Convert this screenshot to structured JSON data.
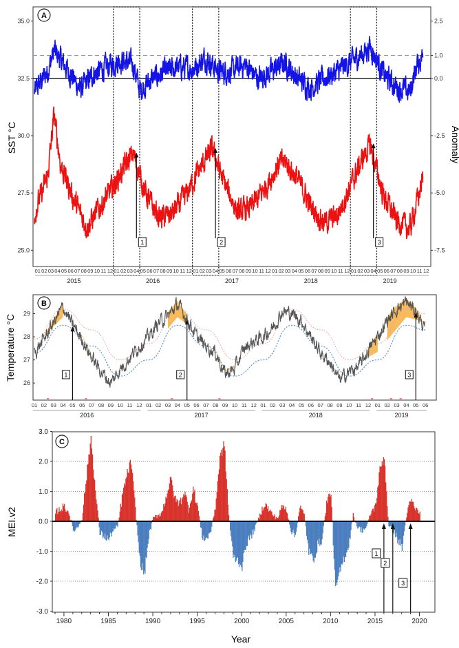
{
  "panels": [
    {
      "id": "A",
      "label": "A",
      "left_axis_label": "SST  °C",
      "right_axis_label": "Anomaly",
      "left_ticks": [
        "35.0",
        "32.5",
        "30.0",
        "27.5",
        "25.0"
      ],
      "right_ticks": [
        "2.5",
        "1.0",
        "0.0",
        "-2.5",
        "-5.0",
        "-7.5"
      ],
      "month_ticks": [
        "01",
        "02",
        "03",
        "04",
        "05",
        "06",
        "07",
        "08",
        "09",
        "10",
        "11",
        "12"
      ],
      "year_labels": [
        "2015",
        "2016",
        "2017",
        "2018",
        "2019"
      ],
      "markers": [
        "1",
        "2",
        "3"
      ]
    },
    {
      "id": "B",
      "label": "B",
      "left_axis_label": "Temperature  °C",
      "left_ticks": [
        "29",
        "28",
        "27",
        "26"
      ],
      "month_ticks": [
        "01",
        "02",
        "03",
        "04",
        "05",
        "06",
        "07",
        "08",
        "09",
        "10",
        "11",
        "12"
      ],
      "year_labels": [
        "2016",
        "2017",
        "2018",
        "2019"
      ],
      "markers": [
        "1",
        "2",
        "3"
      ]
    },
    {
      "id": "C",
      "label": "C",
      "left_axis_label": "MEI.v2",
      "x_axis_label": "Year",
      "left_ticks": [
        "3.0",
        "2.0",
        "1.0",
        "0.0",
        "-1.0",
        "-2.0",
        "-3.0"
      ],
      "x_ticks": [
        "1980",
        "1985",
        "1990",
        "1995",
        "2000",
        "2005",
        "2010",
        "2015",
        "2020"
      ],
      "markers": [
        "1",
        "2",
        "3"
      ]
    }
  ],
  "colors": {
    "sst_anomaly": "#1414e6",
    "sst": "#ee1111",
    "temperature": "#555555",
    "climatology": "#e8a0a0",
    "threshold": "#5b8fc9",
    "heatwave_fill": "#f6b24a",
    "mei_positive": "#d8322a",
    "mei_negative": "#4a7ebf",
    "frame": "#333333"
  },
  "chart_data": [
    {
      "panel": "A",
      "type": "line",
      "xlabel": "",
      "ylabel": "SST  °C",
      "y2label": "Anomaly",
      "ylim": [
        24.5,
        35.5
      ],
      "y2lim": [
        -8.0,
        3.0
      ],
      "x_range": [
        "2015-01",
        "2019-12"
      ],
      "series": [
        {
          "axis": "right",
          "points": [
            [
              "2015-01",
              -0.6
            ],
            [
              "2015-03",
              0.3
            ],
            [
              "2015-04",
              1.2
            ],
            [
              "2015-06",
              0.4
            ],
            [
              "2015-08",
              -0.5
            ],
            [
              "2015-10",
              0.2
            ],
            [
              "2015-12",
              0.5
            ],
            [
              "2016-02",
              0.8
            ],
            [
              "2016-04",
              0.6
            ],
            [
              "2016-05",
              -0.5
            ],
            [
              "2016-07",
              0.0
            ],
            [
              "2016-09",
              0.3
            ],
            [
              "2016-11",
              0.5
            ],
            [
              "2017-01",
              0.4
            ],
            [
              "2017-03",
              0.9
            ],
            [
              "2017-05",
              0.3
            ],
            [
              "2017-07",
              0.3
            ],
            [
              "2017-09",
              0.6
            ],
            [
              "2017-11",
              0.0
            ],
            [
              "2018-01",
              0.3
            ],
            [
              "2018-03",
              0.7
            ],
            [
              "2018-05",
              0.0
            ],
            [
              "2018-07",
              -0.4
            ],
            [
              "2018-09",
              0.0
            ],
            [
              "2018-11",
              0.3
            ],
            [
              "2019-01",
              0.7
            ],
            [
              "2019-03",
              1.1
            ],
            [
              "2019-04",
              1.4
            ],
            [
              "2019-06",
              0.2
            ],
            [
              "2019-08",
              -0.4
            ],
            [
              "2019-10",
              -0.6
            ],
            [
              "2019-11",
              0.5
            ],
            [
              "2019-12",
              1.0
            ]
          ]
        },
        {
          "axis": "left",
          "points": [
            [
              "2015-01",
              26.6
            ],
            [
              "2015-03",
              28.2
            ],
            [
              "2015-04",
              30.9
            ],
            [
              "2015-05",
              28.7
            ],
            [
              "2015-07",
              27.2
            ],
            [
              "2015-09",
              26.0
            ],
            [
              "2015-11",
              26.9
            ],
            [
              "2016-01",
              27.8
            ],
            [
              "2016-03",
              28.8
            ],
            [
              "2016-04",
              29.2
            ],
            [
              "2016-06",
              27.4
            ],
            [
              "2016-08",
              26.4
            ],
            [
              "2016-10",
              26.6
            ],
            [
              "2016-12",
              27.4
            ],
            [
              "2017-02",
              28.5
            ],
            [
              "2017-04",
              29.4
            ],
            [
              "2017-06",
              27.8
            ],
            [
              "2017-08",
              26.6
            ],
            [
              "2017-10",
              26.9
            ],
            [
              "2017-12",
              27.7
            ],
            [
              "2018-02",
              28.7
            ],
            [
              "2018-03",
              28.9
            ],
            [
              "2018-05",
              28.1
            ],
            [
              "2018-07",
              26.9
            ],
            [
              "2018-09",
              26.2
            ],
            [
              "2018-11",
              26.5
            ],
            [
              "2019-01",
              27.8
            ],
            [
              "2019-03",
              29.1
            ],
            [
              "2019-04",
              29.6
            ],
            [
              "2019-06",
              27.4
            ],
            [
              "2019-08",
              26.3
            ],
            [
              "2019-10",
              25.9
            ],
            [
              "2019-12",
              28.1
            ]
          ]
        }
      ],
      "reference_lines": [
        {
          "axis": "right",
          "value": 0.0,
          "style": "solid"
        },
        {
          "axis": "right",
          "value": 1.0,
          "style": "dashed"
        }
      ],
      "highlight_windows": [
        [
          "2016-01",
          "2016-04"
        ],
        [
          "2017-01",
          "2017-04"
        ],
        [
          "2019-01",
          "2019-04"
        ]
      ],
      "event_markers": [
        {
          "label": "1",
          "date": "2016-04"
        },
        {
          "label": "2",
          "date": "2017-04"
        },
        {
          "label": "3",
          "date": "2019-04"
        }
      ]
    },
    {
      "panel": "B",
      "type": "line",
      "xlabel": "",
      "ylabel": "Temperature  °C",
      "ylim": [
        25.5,
        29.7
      ],
      "x_range": [
        "2016-01",
        "2019-06"
      ],
      "series": [
        {
          "points": [
            [
              "2016-01",
              27.3
            ],
            [
              "2016-02",
              27.9
            ],
            [
              "2016-03",
              28.6
            ],
            [
              "2016-04",
              29.3
            ],
            [
              "2016-05",
              28.5
            ],
            [
              "2016-06",
              27.9
            ],
            [
              "2016-07",
              27.1
            ],
            [
              "2016-08",
              26.5
            ],
            [
              "2016-09",
              26.0
            ],
            [
              "2016-10",
              26.6
            ],
            [
              "2016-11",
              27.1
            ],
            [
              "2016-12",
              27.6
            ],
            [
              "2017-01",
              28.0
            ],
            [
              "2017-02",
              28.6
            ],
            [
              "2017-03",
              28.9
            ],
            [
              "2017-04",
              29.4
            ],
            [
              "2017-05",
              28.8
            ],
            [
              "2017-06",
              28.0
            ],
            [
              "2017-07",
              27.6
            ],
            [
              "2017-08",
              27.3
            ],
            [
              "2017-09",
              26.4
            ],
            [
              "2017-10",
              26.6
            ],
            [
              "2017-11",
              27.5
            ],
            [
              "2017-12",
              27.8
            ],
            [
              "2018-01",
              28.0
            ],
            [
              "2018-02",
              28.4
            ],
            [
              "2018-03",
              29.1
            ],
            [
              "2018-04",
              29.0
            ],
            [
              "2018-05",
              28.7
            ],
            [
              "2018-06",
              28.0
            ],
            [
              "2018-07",
              27.3
            ],
            [
              "2018-08",
              26.9
            ],
            [
              "2018-09",
              26.1
            ],
            [
              "2018-10",
              26.5
            ],
            [
              "2018-11",
              26.7
            ],
            [
              "2018-12",
              27.4
            ],
            [
              "2019-01",
              28.0
            ],
            [
              "2019-02",
              28.7
            ],
            [
              "2019-03",
              29.2
            ],
            [
              "2019-04",
              29.5
            ],
            [
              "2019-05",
              29.1
            ],
            [
              "2019-06",
              28.3
            ]
          ]
        },
        {
          "style": "dotted",
          "points": [
            [
              "2016-01",
              27.3
            ],
            [
              "2016-04",
              28.5
            ],
            [
              "2016-07",
              27.6
            ],
            [
              "2016-10",
              26.3
            ],
            [
              "2017-01",
              27.0
            ],
            [
              "2017-04",
              28.5
            ],
            [
              "2017-07",
              27.6
            ],
            [
              "2017-10",
              26.3
            ],
            [
              "2018-01",
              27.0
            ],
            [
              "2018-04",
              28.5
            ],
            [
              "2018-07",
              27.6
            ],
            [
              "2018-10",
              26.3
            ],
            [
              "2019-01",
              27.0
            ],
            [
              "2019-04",
              28.5
            ],
            [
              "2019-06",
              28.3
            ]
          ]
        },
        {
          "style": "dotted",
          "points": [
            [
              "2016-01",
              27.9
            ],
            [
              "2016-04",
              29.2
            ],
            [
              "2016-07",
              28.3
            ],
            [
              "2016-10",
              27.0
            ],
            [
              "2017-01",
              27.7
            ],
            [
              "2017-04",
              29.2
            ],
            [
              "2017-07",
              28.3
            ],
            [
              "2017-10",
              27.0
            ],
            [
              "2018-01",
              27.7
            ],
            [
              "2018-04",
              29.2
            ],
            [
              "2018-07",
              28.3
            ],
            [
              "2018-10",
              27.0
            ],
            [
              "2019-01",
              27.7
            ],
            [
              "2019-04",
              29.2
            ],
            [
              "2019-06",
              29.0
            ]
          ]
        }
      ],
      "heatwave_periods": [
        [
          "2016-02",
          "2016-03"
        ],
        [
          "2016-06",
          "2016-06"
        ],
        [
          "2017-03",
          "2017-04"
        ],
        [
          "2017-08",
          "2017-09"
        ],
        [
          "2018-12",
          "2018-12"
        ],
        [
          "2019-02",
          "2019-02"
        ],
        [
          "2019-03",
          "2019-05"
        ]
      ],
      "event_markers": [
        {
          "label": "1",
          "date": "2016-05"
        },
        {
          "label": "2",
          "date": "2017-05"
        },
        {
          "label": "3",
          "date": "2019-05"
        }
      ]
    },
    {
      "panel": "C",
      "type": "bar",
      "xlabel": "Year",
      "ylabel": "MEI.v2",
      "ylim": [
        -3.0,
        3.0
      ],
      "xlim": [
        1979,
        2020.5
      ],
      "points": [
        [
          1979.0,
          0.3
        ],
        [
          1979.5,
          0.4
        ],
        [
          1980.0,
          0.5
        ],
        [
          1980.5,
          0.3
        ],
        [
          1981.0,
          -0.3
        ],
        [
          1981.5,
          -0.2
        ],
        [
          1982.0,
          0.1
        ],
        [
          1982.5,
          1.5
        ],
        [
          1983.0,
          2.8
        ],
        [
          1983.5,
          1.0
        ],
        [
          1984.0,
          -0.4
        ],
        [
          1984.5,
          -0.5
        ],
        [
          1985.0,
          -0.6
        ],
        [
          1985.5,
          -0.3
        ],
        [
          1986.0,
          -0.2
        ],
        [
          1986.5,
          0.8
        ],
        [
          1987.0,
          1.5
        ],
        [
          1987.5,
          2.0
        ],
        [
          1988.0,
          0.4
        ],
        [
          1988.5,
          -1.3
        ],
        [
          1989.0,
          -1.8
        ],
        [
          1989.5,
          -0.5
        ],
        [
          1990.0,
          0.1
        ],
        [
          1990.5,
          0.2
        ],
        [
          1991.0,
          0.3
        ],
        [
          1991.5,
          0.9
        ],
        [
          1992.0,
          1.4
        ],
        [
          1992.5,
          0.7
        ],
        [
          1993.0,
          0.6
        ],
        [
          1993.5,
          1.0
        ],
        [
          1994.0,
          0.4
        ],
        [
          1994.5,
          1.1
        ],
        [
          1995.0,
          0.5
        ],
        [
          1995.5,
          -0.5
        ],
        [
          1996.0,
          -0.6
        ],
        [
          1996.5,
          -0.3
        ],
        [
          1997.0,
          0.5
        ],
        [
          1997.5,
          2.1
        ],
        [
          1998.0,
          2.6
        ],
        [
          1998.5,
          0.2
        ],
        [
          1999.0,
          -1.2
        ],
        [
          1999.5,
          -1.3
        ],
        [
          2000.0,
          -1.5
        ],
        [
          2000.5,
          -0.7
        ],
        [
          2001.0,
          -0.5
        ],
        [
          2001.5,
          -0.2
        ],
        [
          2002.0,
          0.2
        ],
        [
          2002.5,
          0.6
        ],
        [
          2003.0,
          0.4
        ],
        [
          2003.5,
          0.2
        ],
        [
          2004.0,
          0.1
        ],
        [
          2004.5,
          0.5
        ],
        [
          2005.0,
          0.4
        ],
        [
          2005.5,
          -0.3
        ],
        [
          2006.0,
          -0.5
        ],
        [
          2006.5,
          0.5
        ],
        [
          2007.0,
          0.2
        ],
        [
          2007.5,
          -1.0
        ],
        [
          2008.0,
          -1.3
        ],
        [
          2008.5,
          -0.8
        ],
        [
          2009.0,
          -0.6
        ],
        [
          2009.5,
          0.6
        ],
        [
          2010.0,
          1.0
        ],
        [
          2010.5,
          -2.3
        ],
        [
          2011.0,
          -1.7
        ],
        [
          2011.5,
          -1.2
        ],
        [
          2012.0,
          -0.8
        ],
        [
          2012.5,
          0.2
        ],
        [
          2013.0,
          -0.2
        ],
        [
          2013.5,
          -0.3
        ],
        [
          2014.0,
          -0.2
        ],
        [
          2014.5,
          0.3
        ],
        [
          2015.0,
          0.5
        ],
        [
          2015.5,
          1.7
        ],
        [
          2016.0,
          2.2
        ],
        [
          2016.5,
          -0.2
        ],
        [
          2017.0,
          -0.3
        ],
        [
          2017.5,
          -0.6
        ],
        [
          2018.0,
          -0.9
        ],
        [
          2018.5,
          0.2
        ],
        [
          2019.0,
          0.7
        ],
        [
          2019.5,
          0.4
        ],
        [
          2020.0,
          0.3
        ]
      ],
      "event_markers": [
        {
          "label": "1",
          "year": 2016.0
        },
        {
          "label": "2",
          "year": 2017.0
        },
        {
          "label": "3",
          "year": 2019.0
        }
      ]
    }
  ]
}
